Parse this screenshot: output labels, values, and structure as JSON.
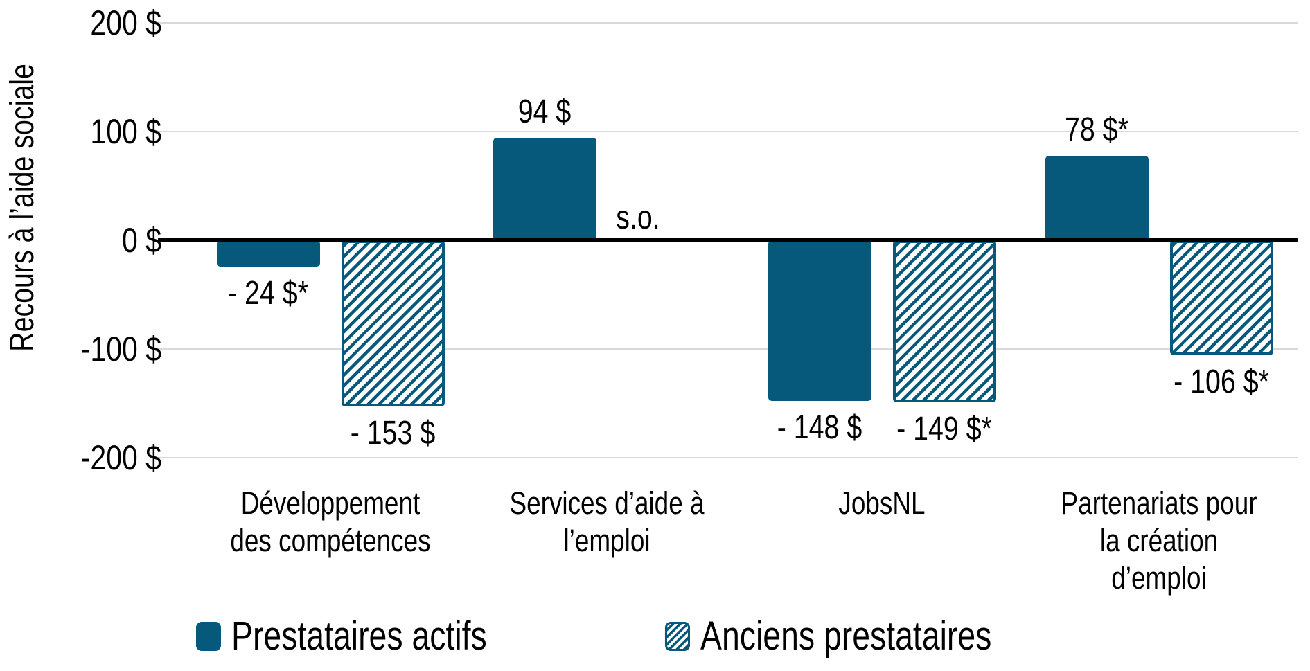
{
  "chart_data": {
    "type": "bar",
    "title": "",
    "ylabel": "Recours à l’aide sociale",
    "ylim": [
      -200,
      200
    ],
    "grid": true,
    "legend_position": "bottom",
    "yticks": [
      {
        "value": 200,
        "label": "200 $"
      },
      {
        "value": 100,
        "label": "100 $"
      },
      {
        "value": 0,
        "label": "0 $"
      },
      {
        "value": -100,
        "label": "-100 $"
      },
      {
        "value": -200,
        "label": "-200 $"
      }
    ],
    "categories": [
      "Développement\ndes compétences",
      "Services d’aide à\nl’emploi",
      "JobsNL",
      "Partenariats pour\nla création\nd’emploi"
    ],
    "series": [
      {
        "name": "Prestataires actifs",
        "pattern": "solid",
        "values": [
          -24,
          94,
          -148,
          78
        ],
        "value_labels": [
          "- 24 $*",
          "94 $",
          "- 148 $",
          "78 $*"
        ]
      },
      {
        "name": "Anciens prestataires",
        "pattern": "hatched",
        "values": [
          -153,
          null,
          -149,
          -106
        ],
        "value_labels": [
          "- 153 $",
          "s.o.",
          "- 149 $*",
          "- 106 $*"
        ]
      }
    ],
    "na_label": "s.o."
  },
  "colors": {
    "bar_teal": "#07597c",
    "hatch_background": "#ffffff",
    "zero_line": "#000000",
    "gridline": "#d9d9d9",
    "text": "#000000"
  }
}
